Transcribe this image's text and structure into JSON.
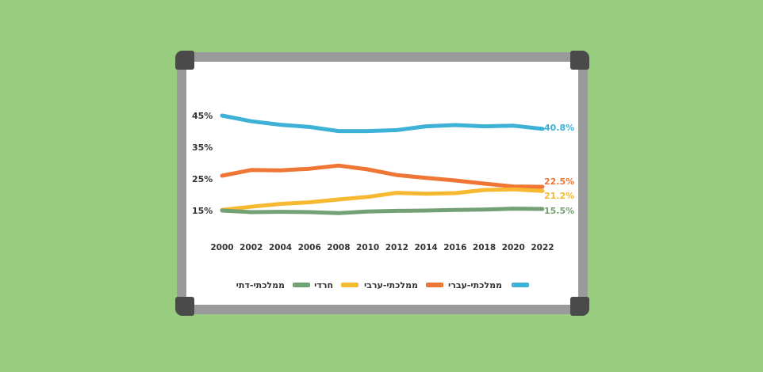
{
  "chart_data": {
    "type": "line",
    "x": [
      2000,
      2002,
      2004,
      2006,
      2008,
      2010,
      2012,
      2014,
      2016,
      2018,
      2020,
      2022
    ],
    "x_tick_labels": [
      "2000",
      "2002",
      "2004",
      "2006",
      "2008",
      "2010",
      "2012",
      "2014",
      "2016",
      "2018",
      "2020",
      "2022"
    ],
    "y_tick_labels": [
      "45%",
      "35%",
      "25%",
      "15%"
    ],
    "y_ticks": [
      45,
      35,
      25,
      15
    ],
    "ylim": [
      15,
      45
    ],
    "grid": false,
    "series": [
      {
        "name": "ממלכתי-עברי",
        "color": "#3eb1d6",
        "values": [
          45,
          43.2,
          42.1,
          41.4,
          40.1,
          40.1,
          40.4,
          41.6,
          42.0,
          41.6,
          41.8,
          40.8
        ],
        "end_label": "40.8%"
      },
      {
        "name": "ממלכתי-ערבי",
        "color": "#ef7634",
        "values": [
          26.0,
          27.8,
          27.7,
          28.2,
          29.2,
          28.0,
          26.2,
          25.3,
          24.5,
          23.5,
          22.6,
          22.5
        ],
        "end_label": "22.5%"
      },
      {
        "name": "חרדי",
        "color": "#f8b932",
        "values": [
          15.2,
          16.2,
          17.1,
          17.6,
          18.5,
          19.3,
          20.6,
          20.3,
          20.5,
          21.5,
          21.7,
          21.2
        ],
        "end_label": "21.2%"
      },
      {
        "name": "ממלכתי-דתי",
        "color": "#73a074",
        "values": [
          15.0,
          14.5,
          14.6,
          14.5,
          14.2,
          14.7,
          14.9,
          15.0,
          15.2,
          15.3,
          15.6,
          15.5
        ],
        "end_label": "15.5%"
      }
    ],
    "legend_position": "bottom"
  }
}
